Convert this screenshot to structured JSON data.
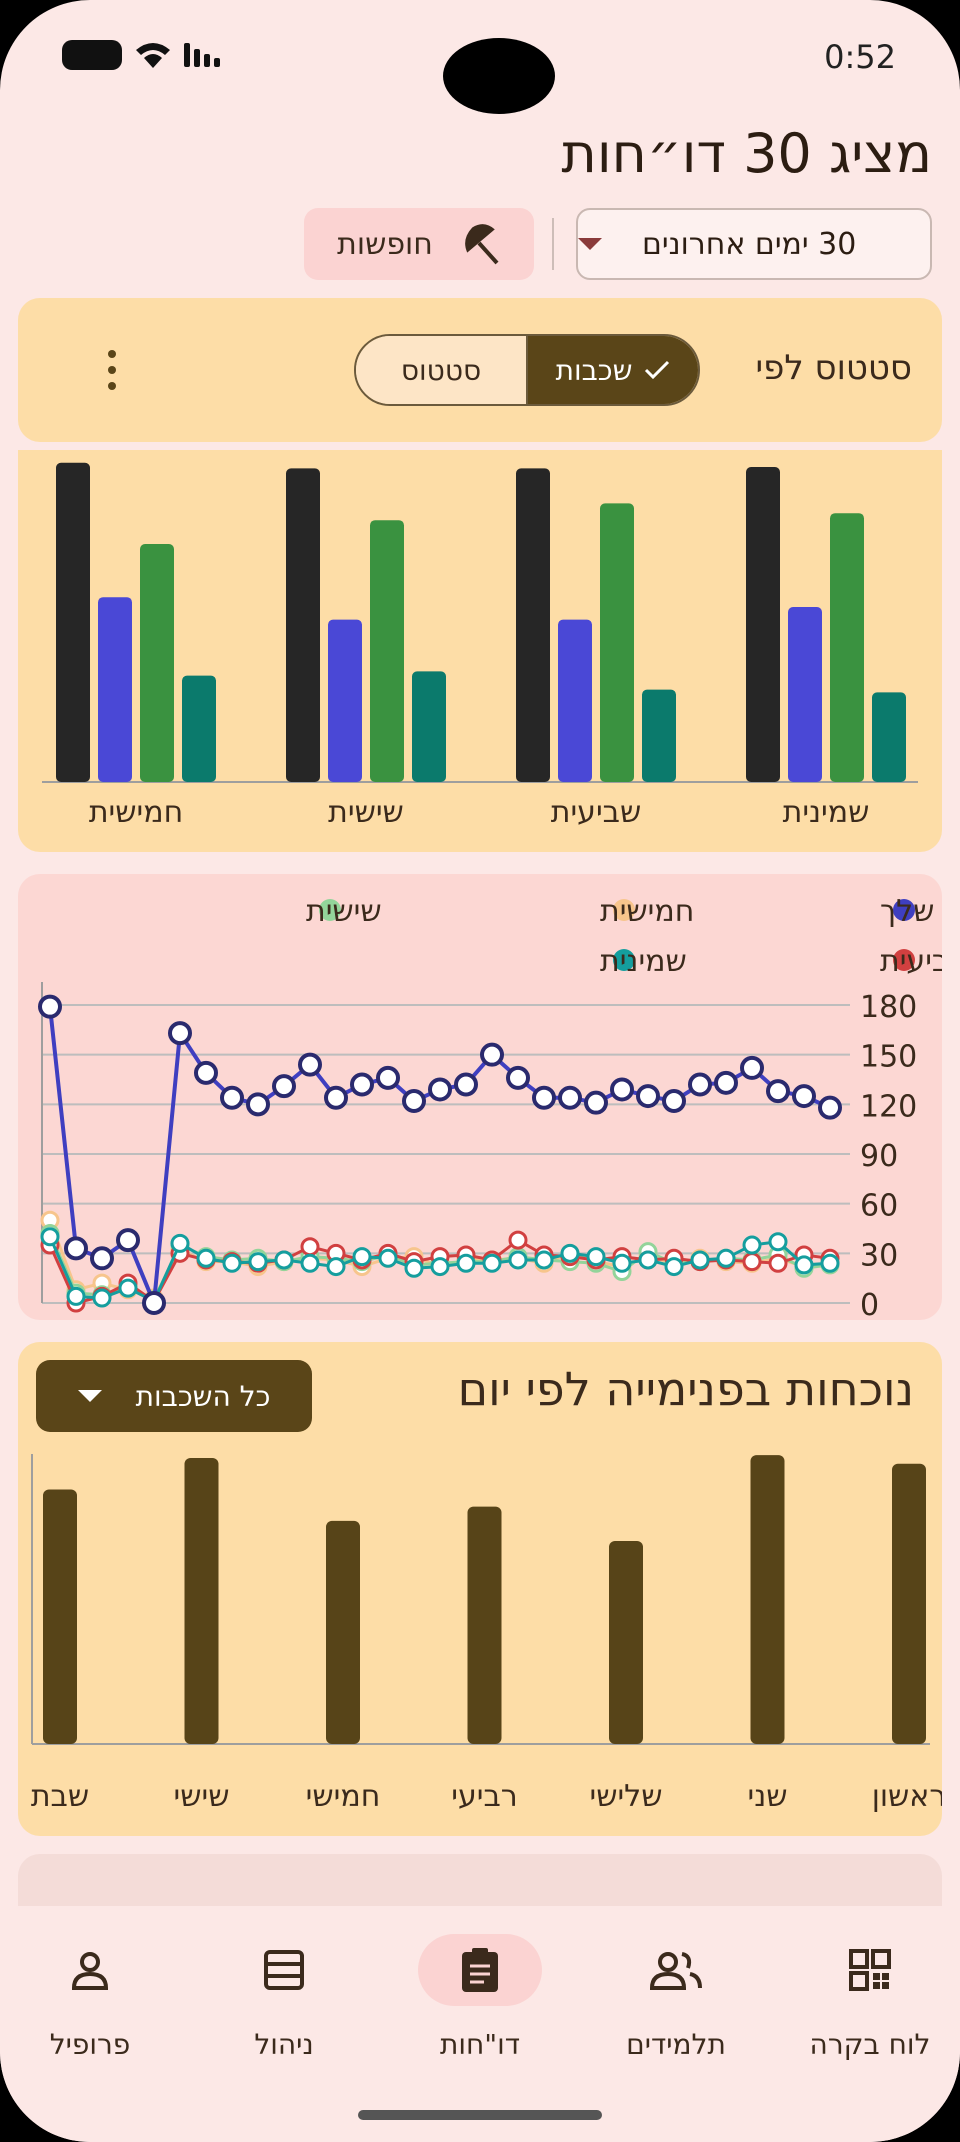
{
  "status_bar": {
    "time": "0:52"
  },
  "page_title": "מציג 30 דו״חות",
  "filters": {
    "range_label": "30 ימים אחרונים",
    "holidays_label": "חופשות"
  },
  "status_card": {
    "heading": "סטטוס לפי",
    "seg_houses": "שכבות",
    "seg_status": "סטטוס"
  },
  "bar_chart_colors": {
    "black": "#262626",
    "blue": "#4a48d6",
    "green": "#3a9240",
    "teal": "#0b7a6c"
  },
  "chart_data": [
    {
      "type": "bar",
      "categories": [
        "חמישית",
        "שישית",
        "שביעית",
        "שמינית"
      ],
      "series": [
        {
          "color": "#262626",
          "values": [
            228,
            224,
            224,
            225
          ]
        },
        {
          "color": "#4a48d6",
          "values": [
            132,
            116,
            116,
            125
          ]
        },
        {
          "color": "#3a9240",
          "values": [
            170,
            187,
            199,
            192
          ]
        },
        {
          "color": "#0b7a6c",
          "values": [
            76,
            79,
            66,
            64
          ]
        }
      ]
    },
    {
      "type": "line",
      "ylim": [
        0,
        180
      ],
      "yticks": [
        0,
        30,
        60,
        90,
        120,
        150,
        180
      ],
      "legend": "top",
      "series": [
        {
          "name": "כל השכבות שלך",
          "color": "#2a2a6e",
          "lineColor": "#3f3fc0",
          "values": [
            179,
            33,
            27,
            38,
            0,
            163,
            139,
            124,
            120,
            131,
            144,
            124,
            132,
            136,
            122,
            129,
            132,
            150,
            136,
            124,
            124,
            121,
            129,
            125,
            122,
            132,
            133,
            142,
            128,
            125,
            118
          ]
        },
        {
          "name": "חמישית",
          "color": "#f7c58c",
          "values": [
            50,
            8,
            12,
            8,
            3,
            32,
            25,
            25,
            22,
            25,
            27,
            26,
            22,
            27,
            28,
            22,
            26,
            26,
            27,
            24,
            30,
            25,
            22,
            28,
            24,
            27,
            25,
            24,
            27,
            22,
            24
          ]
        },
        {
          "name": "שביעית",
          "color": "#d14040",
          "values": [
            35,
            0,
            4,
            12,
            1,
            30,
            26,
            25,
            24,
            26,
            34,
            30,
            26,
            30,
            25,
            28,
            29,
            26,
            38,
            29,
            28,
            26,
            28,
            26,
            27,
            25,
            26,
            25,
            24,
            29,
            27
          ]
        },
        {
          "name": "שמינית",
          "color": "#159e9e",
          "values": [
            40,
            4,
            3,
            9,
            1,
            36,
            27,
            24,
            25,
            26,
            24,
            22,
            28,
            27,
            21,
            22,
            24,
            24,
            26,
            26,
            30,
            28,
            24,
            26,
            22,
            26,
            27,
            35,
            37,
            23,
            24
          ]
        },
        {
          "name": "שישית",
          "color": "#93d49a",
          "values": [
            42,
            6,
            5,
            10,
            2,
            35,
            28,
            26,
            27,
            25,
            28,
            27,
            25,
            29,
            23,
            24,
            25,
            25,
            28,
            26,
            25,
            24,
            19,
            31,
            24,
            25,
            27,
            26,
            29,
            21,
            23
          ]
        }
      ]
    },
    {
      "type": "bar",
      "title": "נוכחות בפנימייה לפי יום",
      "categories": [
        "שבת",
        "שישי",
        "חמישי",
        "רביעי",
        "שלישי",
        "שני",
        "ראשון"
      ],
      "values": [
        89,
        100,
        78,
        83,
        71,
        101,
        98
      ],
      "color": "#574418"
    }
  ],
  "presence_card": {
    "heading": "נוכחות בפנימייה לפי יום",
    "select_label": "כל השכבות"
  },
  "bottom_nav": {
    "items": [
      {
        "label": "פרופיל"
      },
      {
        "label": "ניהול"
      },
      {
        "label": "דו\"חות"
      },
      {
        "label": "תלמידים"
      },
      {
        "label": "לוח בקרה"
      }
    ]
  }
}
